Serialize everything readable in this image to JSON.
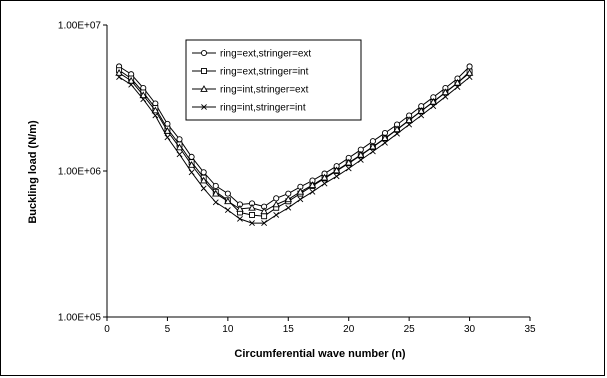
{
  "chart_data": {
    "type": "line",
    "xlabel": "Circumferential wave number (n)",
    "ylabel": "Buckling load (N/m)",
    "xlim": [
      0,
      35
    ],
    "ylim": [
      100000,
      10000000
    ],
    "yscale": "log",
    "x_ticks": [
      0,
      5,
      10,
      15,
      20,
      25,
      30,
      35
    ],
    "y_ticks": [
      100000,
      1000000,
      10000000
    ],
    "y_tick_labels": [
      "1.00E+05",
      "1.00E+06",
      "1.00E+07"
    ],
    "legend_position": "top-center",
    "grid": false,
    "x": [
      1,
      2,
      3,
      4,
      5,
      6,
      7,
      8,
      9,
      10,
      11,
      12,
      13,
      14,
      15,
      16,
      17,
      18,
      19,
      20,
      21,
      22,
      23,
      24,
      25,
      26,
      27,
      28,
      29,
      30
    ],
    "series": [
      {
        "name": "ring=ext,stringer=ext",
        "marker": "circle",
        "values": [
          5200000,
          4600000,
          3700000,
          2900000,
          2100000,
          1650000,
          1250000,
          980000,
          790000,
          700000,
          590000,
          600000,
          570000,
          650000,
          700000,
          780000,
          860000,
          960000,
          1080000,
          1230000,
          1400000,
          1600000,
          1820000,
          2080000,
          2400000,
          2780000,
          3200000,
          3700000,
          4300000,
          5200000
        ]
      },
      {
        "name": "ring=ext,stringer=int",
        "marker": "square",
        "values": [
          4900000,
          4300000,
          3450000,
          2700000,
          1950000,
          1520000,
          1150000,
          900000,
          720000,
          630000,
          520000,
          500000,
          490000,
          560000,
          620000,
          700000,
          790000,
          890000,
          1000000,
          1130000,
          1280000,
          1460000,
          1670000,
          1920000,
          2220000,
          2570000,
          2970000,
          3450000,
          4000000,
          4800000
        ]
      },
      {
        "name": "ring=int,stringer=ext",
        "marker": "triangle",
        "values": [
          4700000,
          4150000,
          3300000,
          2600000,
          1880000,
          1450000,
          1100000,
          860000,
          700000,
          620000,
          550000,
          560000,
          530000,
          590000,
          640000,
          720000,
          800000,
          900000,
          1010000,
          1140000,
          1290000,
          1470000,
          1680000,
          1930000,
          2230000,
          2580000,
          2980000,
          3460000,
          4020000,
          4700000
        ]
      },
      {
        "name": "ring=int,stringer=int",
        "marker": "x",
        "values": [
          4400000,
          3900000,
          3100000,
          2400000,
          1700000,
          1300000,
          980000,
          760000,
          610000,
          540000,
          470000,
          440000,
          440000,
          500000,
          560000,
          640000,
          720000,
          820000,
          920000,
          1040000,
          1190000,
          1360000,
          1560000,
          1800000,
          2080000,
          2400000,
          2780000,
          3230000,
          3760000,
          4400000
        ]
      }
    ]
  }
}
